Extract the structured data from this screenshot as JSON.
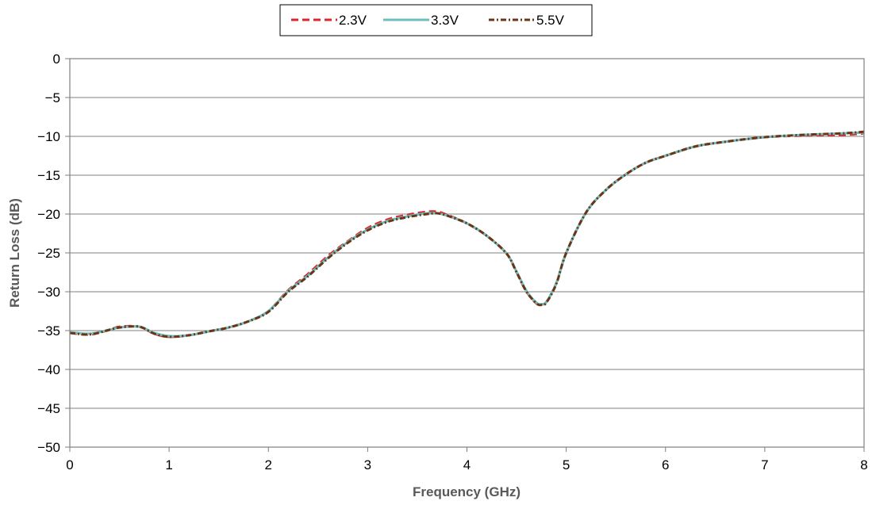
{
  "chart_data": {
    "type": "line",
    "title": "",
    "xlabel": "Frequency (GHz)",
    "ylabel": "Return Loss (dB)",
    "xlim": [
      0,
      8
    ],
    "ylim": [
      -50,
      0
    ],
    "x_ticks": [
      "0",
      "1",
      "2",
      "3",
      "4",
      "5",
      "6",
      "7",
      "8"
    ],
    "y_ticks": [
      "0",
      "−5",
      "−10",
      "−15",
      "−20",
      "−25",
      "−30",
      "−35",
      "−40",
      "−45",
      "−50"
    ],
    "grid": "horizontal",
    "legend_position": "top-center",
    "series": [
      {
        "name": "2.3V",
        "color": "#e0242b",
        "style": "dashed",
        "x": [
          0,
          0.2,
          0.4,
          0.5,
          0.7,
          0.85,
          1.0,
          1.2,
          1.4,
          1.6,
          1.8,
          2.0,
          2.2,
          2.4,
          2.6,
          2.8,
          3.0,
          3.2,
          3.4,
          3.6,
          3.7,
          3.8,
          4.0,
          4.2,
          4.4,
          4.5,
          4.6,
          4.7,
          4.75,
          4.8,
          4.9,
          5.0,
          5.2,
          5.4,
          5.6,
          5.8,
          6.0,
          6.3,
          6.6,
          7.0,
          7.4,
          7.8,
          8.0
        ],
        "y": [
          -35.3,
          -35.5,
          -34.9,
          -34.5,
          -34.5,
          -35.4,
          -35.8,
          -35.6,
          -35.1,
          -34.6,
          -33.8,
          -32.5,
          -29.8,
          -27.7,
          -25.4,
          -23.5,
          -21.8,
          -20.7,
          -20.1,
          -19.7,
          -19.7,
          -20.1,
          -21.2,
          -22.8,
          -25.1,
          -27.5,
          -30.0,
          -31.5,
          -31.6,
          -31.3,
          -28.9,
          -25.0,
          -19.8,
          -16.9,
          -14.9,
          -13.4,
          -12.5,
          -11.3,
          -10.7,
          -10.1,
          -9.9,
          -9.8,
          -9.6
        ]
      },
      {
        "name": "3.3V",
        "color": "#6cbfbe",
        "style": "solid",
        "x": [
          0,
          0.2,
          0.4,
          0.5,
          0.7,
          0.85,
          1.0,
          1.2,
          1.4,
          1.6,
          1.8,
          2.0,
          2.2,
          2.4,
          2.6,
          2.8,
          3.0,
          3.2,
          3.4,
          3.6,
          3.7,
          3.8,
          4.0,
          4.2,
          4.4,
          4.5,
          4.6,
          4.7,
          4.75,
          4.8,
          4.9,
          5.0,
          5.2,
          5.4,
          5.6,
          5.8,
          6.0,
          6.3,
          6.6,
          7.0,
          7.4,
          7.8,
          8.0
        ],
        "y": [
          -35.2,
          -35.4,
          -34.9,
          -34.6,
          -34.5,
          -35.3,
          -35.7,
          -35.6,
          -35.1,
          -34.6,
          -33.8,
          -32.5,
          -29.9,
          -27.9,
          -25.6,
          -23.6,
          -22.0,
          -20.9,
          -20.3,
          -19.9,
          -19.9,
          -20.2,
          -21.2,
          -22.8,
          -25.1,
          -27.4,
          -29.9,
          -31.4,
          -31.6,
          -31.3,
          -28.9,
          -25.0,
          -19.8,
          -16.9,
          -14.9,
          -13.4,
          -12.5,
          -11.3,
          -10.7,
          -10.1,
          -9.8,
          -9.6,
          -9.5
        ]
      },
      {
        "name": "5.5V",
        "color": "#6b3515",
        "style": "dash-dot",
        "x": [
          0,
          0.2,
          0.4,
          0.5,
          0.7,
          0.85,
          1.0,
          1.2,
          1.4,
          1.6,
          1.8,
          2.0,
          2.2,
          2.4,
          2.6,
          2.8,
          3.0,
          3.2,
          3.4,
          3.6,
          3.7,
          3.8,
          4.0,
          4.2,
          4.4,
          4.5,
          4.6,
          4.7,
          4.75,
          4.8,
          4.9,
          5.0,
          5.2,
          5.4,
          5.6,
          5.8,
          6.0,
          6.3,
          6.6,
          7.0,
          7.4,
          7.8,
          8.0
        ],
        "y": [
          -35.3,
          -35.5,
          -34.9,
          -34.6,
          -34.5,
          -35.4,
          -35.8,
          -35.6,
          -35.1,
          -34.6,
          -33.8,
          -32.6,
          -30.0,
          -28.0,
          -25.7,
          -23.7,
          -22.1,
          -21.0,
          -20.4,
          -20.0,
          -19.9,
          -20.2,
          -21.2,
          -22.8,
          -25.1,
          -27.5,
          -30.0,
          -31.5,
          -31.7,
          -31.4,
          -29.0,
          -25.0,
          -19.8,
          -16.9,
          -14.9,
          -13.4,
          -12.5,
          -11.3,
          -10.7,
          -10.1,
          -9.8,
          -9.6,
          -9.4
        ]
      }
    ]
  }
}
